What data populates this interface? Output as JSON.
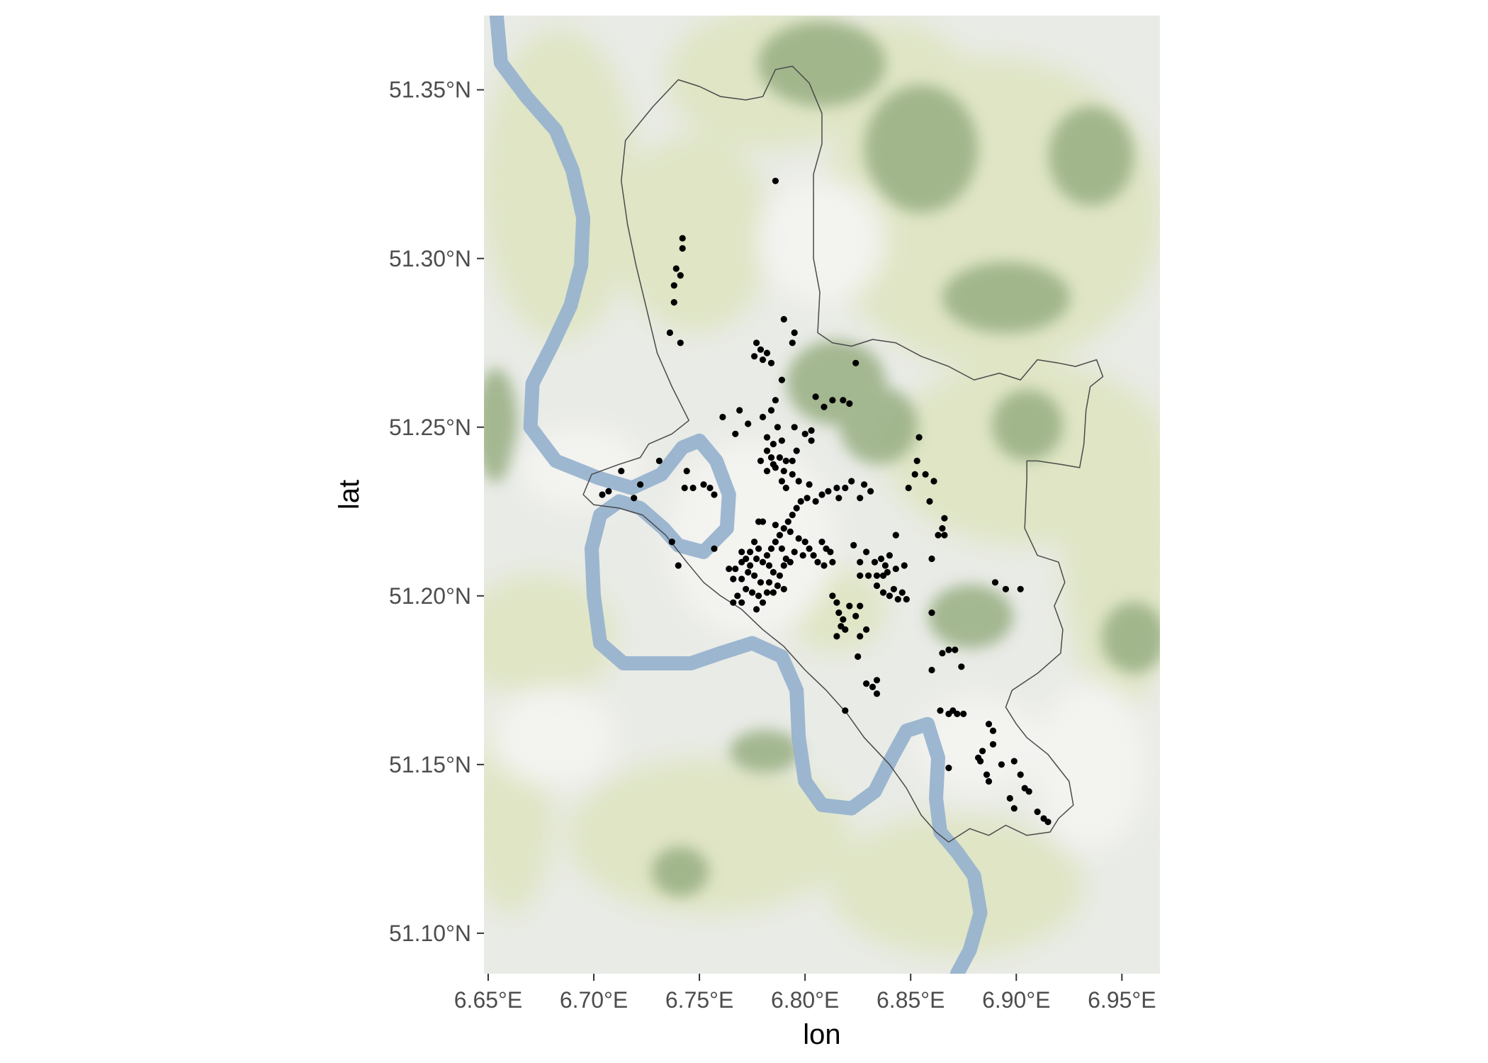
{
  "chart_data": {
    "type": "scatter",
    "xlabel": "lon",
    "ylabel": "lat",
    "xlim": [
      6.648,
      6.968
    ],
    "ylim": [
      51.088,
      51.372
    ],
    "x_ticks": [
      {
        "value": 6.65,
        "label": "6.65°E"
      },
      {
        "value": 6.7,
        "label": "6.70°E"
      },
      {
        "value": 6.75,
        "label": "6.75°E"
      },
      {
        "value": 6.8,
        "label": "6.80°E"
      },
      {
        "value": 6.85,
        "label": "6.85°E"
      },
      {
        "value": 6.9,
        "label": "6.90°E"
      },
      {
        "value": 6.95,
        "label": "6.95°E"
      }
    ],
    "y_ticks": [
      {
        "value": 51.1,
        "label": "51.10°N"
      },
      {
        "value": 51.15,
        "label": "51.15°N"
      },
      {
        "value": 51.2,
        "label": "51.20°N"
      },
      {
        "value": 51.25,
        "label": "51.25°N"
      },
      {
        "value": 51.3,
        "label": "51.30°N"
      },
      {
        "value": 51.35,
        "label": "51.35°N"
      }
    ],
    "grid": false,
    "legend": "none",
    "colors": {
      "points": "#000000",
      "boundary": "#4a4a4a",
      "river": "#98b3cf",
      "land": "#e9ebe6",
      "light_green": "#dfe5c5",
      "forest": "#97ae82"
    },
    "river": [
      [
        6.654,
        51.372
      ],
      [
        6.656,
        51.358
      ],
      [
        6.668,
        51.348
      ],
      [
        6.682,
        51.338
      ],
      [
        6.69,
        51.326
      ],
      [
        6.695,
        51.312
      ],
      [
        6.694,
        51.298
      ],
      [
        6.689,
        51.286
      ],
      [
        6.68,
        51.274
      ],
      [
        6.671,
        51.263
      ],
      [
        6.67,
        51.25
      ],
      [
        6.682,
        51.24
      ],
      [
        6.702,
        51.235
      ],
      [
        6.718,
        51.232
      ],
      [
        6.732,
        51.236
      ],
      [
        6.742,
        51.244
      ],
      [
        6.75,
        51.246
      ],
      [
        6.758,
        51.24
      ],
      [
        6.764,
        51.23
      ],
      [
        6.763,
        51.22
      ],
      [
        6.752,
        51.213
      ],
      [
        6.74,
        51.215
      ],
      [
        6.733,
        51.22
      ],
      [
        6.722,
        51.226
      ],
      [
        6.712,
        51.228
      ],
      [
        6.703,
        51.224
      ],
      [
        6.699,
        51.214
      ],
      [
        6.7,
        51.2
      ],
      [
        6.703,
        51.186
      ],
      [
        6.714,
        51.18
      ],
      [
        6.73,
        51.18
      ],
      [
        6.746,
        51.18
      ],
      [
        6.76,
        51.183
      ],
      [
        6.775,
        51.186
      ],
      [
        6.789,
        51.182
      ],
      [
        6.796,
        51.172
      ],
      [
        6.797,
        51.158
      ],
      [
        6.8,
        51.145
      ],
      [
        6.808,
        51.138
      ],
      [
        6.822,
        51.137
      ],
      [
        6.833,
        51.142
      ],
      [
        6.841,
        51.152
      ],
      [
        6.848,
        51.16
      ],
      [
        6.858,
        51.162
      ],
      [
        6.863,
        51.152
      ],
      [
        6.862,
        51.14
      ],
      [
        6.864,
        51.13
      ],
      [
        6.872,
        51.124
      ],
      [
        6.88,
        51.117
      ],
      [
        6.883,
        51.106
      ],
      [
        6.878,
        51.095
      ],
      [
        6.872,
        51.088
      ]
    ],
    "boundary": [
      [
        6.715,
        51.335
      ],
      [
        6.728,
        51.345
      ],
      [
        6.74,
        51.353
      ],
      [
        6.75,
        51.351
      ],
      [
        6.76,
        51.348
      ],
      [
        6.772,
        51.347
      ],
      [
        6.78,
        51.348
      ],
      [
        6.786,
        51.356
      ],
      [
        6.794,
        51.357
      ],
      [
        6.802,
        51.352
      ],
      [
        6.808,
        51.343
      ],
      [
        6.808,
        51.334
      ],
      [
        6.804,
        51.325
      ],
      [
        6.804,
        51.312
      ],
      [
        6.804,
        51.3
      ],
      [
        6.807,
        51.29
      ],
      [
        6.806,
        51.278
      ],
      [
        6.813,
        51.275
      ],
      [
        6.822,
        51.274
      ],
      [
        6.832,
        51.276
      ],
      [
        6.843,
        51.275
      ],
      [
        6.855,
        51.271
      ],
      [
        6.868,
        51.268
      ],
      [
        6.88,
        51.264
      ],
      [
        6.892,
        51.266
      ],
      [
        6.902,
        51.264
      ],
      [
        6.91,
        51.27
      ],
      [
        6.92,
        51.269
      ],
      [
        6.928,
        51.268
      ],
      [
        6.938,
        51.27
      ],
      [
        6.941,
        51.265
      ],
      [
        6.935,
        51.262
      ],
      [
        6.933,
        51.255
      ],
      [
        6.932,
        51.245
      ],
      [
        6.93,
        51.238
      ],
      [
        6.921,
        51.239
      ],
      [
        6.91,
        51.24
      ],
      [
        6.905,
        51.24
      ],
      [
        6.905,
        51.235
      ],
      [
        6.904,
        51.22
      ],
      [
        6.91,
        51.212
      ],
      [
        6.92,
        51.21
      ],
      [
        6.923,
        51.204
      ],
      [
        6.918,
        51.197
      ],
      [
        6.922,
        51.19
      ],
      [
        6.921,
        51.183
      ],
      [
        6.91,
        51.177
      ],
      [
        6.898,
        51.172
      ],
      [
        6.895,
        51.167
      ],
      [
        6.9,
        51.162
      ],
      [
        6.905,
        51.158
      ],
      [
        6.915,
        51.153
      ],
      [
        6.925,
        51.145
      ],
      [
        6.927,
        51.138
      ],
      [
        6.92,
        51.134
      ],
      [
        6.916,
        51.13
      ],
      [
        6.905,
        51.129
      ],
      [
        6.895,
        51.132
      ],
      [
        6.887,
        51.129
      ],
      [
        6.878,
        51.131
      ],
      [
        6.868,
        51.127
      ],
      [
        6.862,
        51.13
      ],
      [
        6.855,
        51.135
      ],
      [
        6.848,
        51.143
      ],
      [
        6.84,
        51.15
      ],
      [
        6.828,
        51.158
      ],
      [
        6.82,
        51.165
      ],
      [
        6.81,
        51.172
      ],
      [
        6.8,
        51.178
      ],
      [
        6.79,
        51.185
      ],
      [
        6.78,
        51.19
      ],
      [
        6.77,
        51.196
      ],
      [
        6.76,
        51.2
      ],
      [
        6.752,
        51.204
      ],
      [
        6.744,
        51.21
      ],
      [
        6.734,
        51.218
      ],
      [
        6.723,
        51.224
      ],
      [
        6.712,
        51.226
      ],
      [
        6.7,
        51.227
      ],
      [
        6.695,
        51.23
      ],
      [
        6.699,
        51.236
      ],
      [
        6.712,
        51.239
      ],
      [
        6.722,
        51.241
      ],
      [
        6.726,
        51.245
      ],
      [
        6.737,
        51.248
      ],
      [
        6.745,
        51.252
      ],
      [
        6.737,
        51.262
      ],
      [
        6.73,
        51.272
      ],
      [
        6.725,
        51.285
      ],
      [
        6.72,
        51.298
      ],
      [
        6.716,
        51.31
      ],
      [
        6.713,
        51.323
      ]
    ],
    "points": [
      [
        6.786,
        51.323
      ],
      [
        6.742,
        51.306
      ],
      [
        6.742,
        51.303
      ],
      [
        6.739,
        51.297
      ],
      [
        6.741,
        51.295
      ],
      [
        6.738,
        51.292
      ],
      [
        6.738,
        51.287
      ],
      [
        6.736,
        51.278
      ],
      [
        6.741,
        51.275
      ],
      [
        6.79,
        51.282
      ],
      [
        6.795,
        51.278
      ],
      [
        6.794,
        51.275
      ],
      [
        6.824,
        51.269
      ],
      [
        6.777,
        51.275
      ],
      [
        6.779,
        51.273
      ],
      [
        6.776,
        51.271
      ],
      [
        6.782,
        51.272
      ],
      [
        6.78,
        51.27
      ],
      [
        6.784,
        51.269
      ],
      [
        6.789,
        51.264
      ],
      [
        6.786,
        51.258
      ],
      [
        6.784,
        51.255
      ],
      [
        6.805,
        51.259
      ],
      [
        6.813,
        51.258
      ],
      [
        6.809,
        51.256
      ],
      [
        6.818,
        51.258
      ],
      [
        6.821,
        51.257
      ],
      [
        6.769,
        51.255
      ],
      [
        6.761,
        51.253
      ],
      [
        6.773,
        51.251
      ],
      [
        6.767,
        51.248
      ],
      [
        6.78,
        51.253
      ],
      [
        6.787,
        51.25
      ],
      [
        6.795,
        51.25
      ],
      [
        6.8,
        51.248
      ],
      [
        6.803,
        51.249
      ],
      [
        6.803,
        51.246
      ],
      [
        6.782,
        51.247
      ],
      [
        6.785,
        51.245
      ],
      [
        6.789,
        51.246
      ],
      [
        6.782,
        51.243
      ],
      [
        6.784,
        51.241
      ],
      [
        6.788,
        51.241
      ],
      [
        6.791,
        51.24
      ],
      [
        6.796,
        51.243
      ],
      [
        6.794,
        51.24
      ],
      [
        6.786,
        51.238
      ],
      [
        6.79,
        51.237
      ],
      [
        6.794,
        51.236
      ],
      [
        6.789,
        51.234
      ],
      [
        6.797,
        51.234
      ],
      [
        6.791,
        51.232
      ],
      [
        6.785,
        51.239
      ],
      [
        6.779,
        51.24
      ],
      [
        6.782,
        51.237
      ],
      [
        6.731,
        51.24
      ],
      [
        6.713,
        51.237
      ],
      [
        6.744,
        51.237
      ],
      [
        6.743,
        51.232
      ],
      [
        6.747,
        51.232
      ],
      [
        6.752,
        51.233
      ],
      [
        6.755,
        51.232
      ],
      [
        6.757,
        51.23
      ],
      [
        6.722,
        51.233
      ],
      [
        6.719,
        51.229
      ],
      [
        6.704,
        51.23
      ],
      [
        6.707,
        51.231
      ],
      [
        6.802,
        51.233
      ],
      [
        6.801,
        51.229
      ],
      [
        6.805,
        51.228
      ],
      [
        6.808,
        51.23
      ],
      [
        6.811,
        51.231
      ],
      [
        6.815,
        51.232
      ],
      [
        6.819,
        51.232
      ],
      [
        6.822,
        51.234
      ],
      [
        6.816,
        51.229
      ],
      [
        6.828,
        51.233
      ],
      [
        6.826,
        51.229
      ],
      [
        6.831,
        51.231
      ],
      [
        6.854,
        51.247
      ],
      [
        6.853,
        51.24
      ],
      [
        6.852,
        51.236
      ],
      [
        6.857,
        51.236
      ],
      [
        6.849,
        51.232
      ],
      [
        6.861,
        51.234
      ],
      [
        6.859,
        51.228
      ],
      [
        6.866,
        51.223
      ],
      [
        6.865,
        51.22
      ],
      [
        6.863,
        51.218
      ],
      [
        6.866,
        51.218
      ],
      [
        6.86,
        51.211
      ],
      [
        6.798,
        51.228
      ],
      [
        6.796,
        51.226
      ],
      [
        6.794,
        51.224
      ],
      [
        6.792,
        51.222
      ],
      [
        6.79,
        51.22
      ],
      [
        6.788,
        51.218
      ],
      [
        6.786,
        51.216
      ],
      [
        6.784,
        51.214
      ],
      [
        6.782,
        51.212
      ],
      [
        6.786,
        51.221
      ],
      [
        6.793,
        51.219
      ],
      [
        6.797,
        51.217
      ],
      [
        6.8,
        51.216
      ],
      [
        6.802,
        51.214
      ],
      [
        6.804,
        51.212
      ],
      [
        6.806,
        51.21
      ],
      [
        6.799,
        51.212
      ],
      [
        6.795,
        51.213
      ],
      [
        6.791,
        51.211
      ],
      [
        6.789,
        51.214
      ],
      [
        6.778,
        51.222
      ],
      [
        6.78,
        51.222
      ],
      [
        6.776,
        51.216
      ],
      [
        6.778,
        51.214
      ],
      [
        6.774,
        51.213
      ],
      [
        6.772,
        51.211
      ],
      [
        6.77,
        51.21
      ],
      [
        6.774,
        51.209
      ],
      [
        6.777,
        51.211
      ],
      [
        6.78,
        51.21
      ],
      [
        6.783,
        51.209
      ],
      [
        6.785,
        51.207
      ],
      [
        6.788,
        51.206
      ],
      [
        6.79,
        51.209
      ],
      [
        6.793,
        51.21
      ],
      [
        6.77,
        51.213
      ],
      [
        6.767,
        51.208
      ],
      [
        6.764,
        51.208
      ],
      [
        6.766,
        51.205
      ],
      [
        6.77,
        51.205
      ],
      [
        6.773,
        51.207
      ],
      [
        6.776,
        51.206
      ],
      [
        6.779,
        51.204
      ],
      [
        6.783,
        51.204
      ],
      [
        6.787,
        51.203
      ],
      [
        6.79,
        51.202
      ],
      [
        6.782,
        51.201
      ],
      [
        6.778,
        51.2
      ],
      [
        6.775,
        51.201
      ],
      [
        6.772,
        51.202
      ],
      [
        6.768,
        51.2
      ],
      [
        6.766,
        51.198
      ],
      [
        6.77,
        51.198
      ],
      [
        6.78,
        51.198
      ],
      [
        6.777,
        51.196
      ],
      [
        6.785,
        51.201
      ],
      [
        6.757,
        51.214
      ],
      [
        6.808,
        51.216
      ],
      [
        6.81,
        51.214
      ],
      [
        6.812,
        51.213
      ],
      [
        6.809,
        51.209
      ],
      [
        6.813,
        51.21
      ],
      [
        6.823,
        51.215
      ],
      [
        6.829,
        51.213
      ],
      [
        6.826,
        51.21
      ],
      [
        6.833,
        51.21
      ],
      [
        6.838,
        51.209
      ],
      [
        6.836,
        51.211
      ],
      [
        6.84,
        51.212
      ],
      [
        6.843,
        51.218
      ],
      [
        6.826,
        51.206
      ],
      [
        6.83,
        51.206
      ],
      [
        6.834,
        51.206
      ],
      [
        6.837,
        51.206
      ],
      [
        6.839,
        51.207
      ],
      [
        6.843,
        51.208
      ],
      [
        6.847,
        51.209
      ],
      [
        6.834,
        51.203
      ],
      [
        6.837,
        51.201
      ],
      [
        6.84,
        51.2
      ],
      [
        6.844,
        51.199
      ],
      [
        6.846,
        51.201
      ],
      [
        6.842,
        51.202
      ],
      [
        6.848,
        51.199
      ],
      [
        6.813,
        51.2
      ],
      [
        6.815,
        51.198
      ],
      [
        6.816,
        51.195
      ],
      [
        6.818,
        51.193
      ],
      [
        6.817,
        51.191
      ],
      [
        6.819,
        51.19
      ],
      [
        6.815,
        51.188
      ],
      [
        6.821,
        51.197
      ],
      [
        6.824,
        51.194
      ],
      [
        6.826,
        51.197
      ],
      [
        6.829,
        51.19
      ],
      [
        6.826,
        51.188
      ],
      [
        6.825,
        51.182
      ],
      [
        6.829,
        51.174
      ],
      [
        6.832,
        51.173
      ],
      [
        6.834,
        51.171
      ],
      [
        6.834,
        51.175
      ],
      [
        6.819,
        51.166
      ],
      [
        6.737,
        51.216
      ],
      [
        6.74,
        51.209
      ],
      [
        6.86,
        51.195
      ],
      [
        6.86,
        51.178
      ],
      [
        6.865,
        51.183
      ],
      [
        6.868,
        51.184
      ],
      [
        6.871,
        51.184
      ],
      [
        6.874,
        51.179
      ],
      [
        6.864,
        51.166
      ],
      [
        6.868,
        51.165
      ],
      [
        6.87,
        51.166
      ],
      [
        6.872,
        51.165
      ],
      [
        6.875,
        51.165
      ],
      [
        6.868,
        51.149
      ],
      [
        6.89,
        51.204
      ],
      [
        6.895,
        51.202
      ],
      [
        6.902,
        51.202
      ],
      [
        6.887,
        51.162
      ],
      [
        6.889,
        51.16
      ],
      [
        6.889,
        51.156
      ],
      [
        6.884,
        51.154
      ],
      [
        6.882,
        51.152
      ],
      [
        6.883,
        51.151
      ],
      [
        6.886,
        51.147
      ],
      [
        6.887,
        51.145
      ],
      [
        6.893,
        51.15
      ],
      [
        6.899,
        51.151
      ],
      [
        6.902,
        51.147
      ],
      [
        6.904,
        51.143
      ],
      [
        6.906,
        51.142
      ],
      [
        6.897,
        51.14
      ],
      [
        6.899,
        51.137
      ],
      [
        6.91,
        51.136
      ],
      [
        6.913,
        51.134
      ],
      [
        6.915,
        51.133
      ]
    ]
  }
}
